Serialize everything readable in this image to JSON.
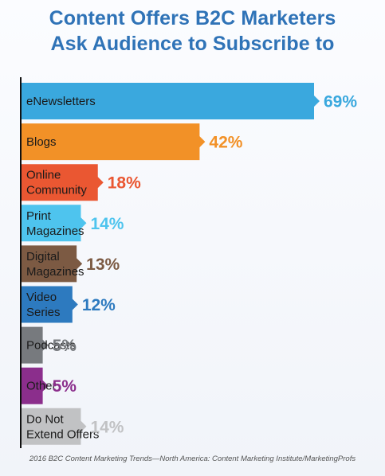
{
  "title_lines": [
    "Content Offers B2C Marketers",
    "Ask Audience to Subscribe to"
  ],
  "source": "2016 B2C Content Marketing Trends—North America: Content Marketing Institute/MarketingProfs",
  "chart_data": {
    "type": "bar",
    "orientation": "horizontal",
    "title": "Content Offers B2C Marketers Ask Audience to Subscribe to",
    "categories": [
      [
        "eNewsletters"
      ],
      [
        "Blogs"
      ],
      [
        "Online",
        "Community"
      ],
      [
        "Print",
        "Magazines"
      ],
      [
        "Digital",
        "Magazines"
      ],
      [
        "Video",
        "Series"
      ],
      [
        "Podcasts"
      ],
      [
        "Other"
      ],
      [
        "Do Not",
        "Extend Offers"
      ]
    ],
    "values": [
      69,
      42,
      18,
      14,
      13,
      12,
      5,
      5,
      14
    ],
    "value_labels": [
      "69%",
      "42%",
      "18%",
      "14%",
      "13%",
      "12%",
      "5%",
      "5%",
      "14%"
    ],
    "colors": [
      "#3aa8de",
      "#f29127",
      "#ea5732",
      "#4ec4ee",
      "#7c5a43",
      "#2d7abf",
      "#777a7e",
      "#8b2e8c",
      "#c1c2c4"
    ],
    "xlim": [
      0,
      69
    ],
    "grid": false,
    "legend": "none"
  }
}
